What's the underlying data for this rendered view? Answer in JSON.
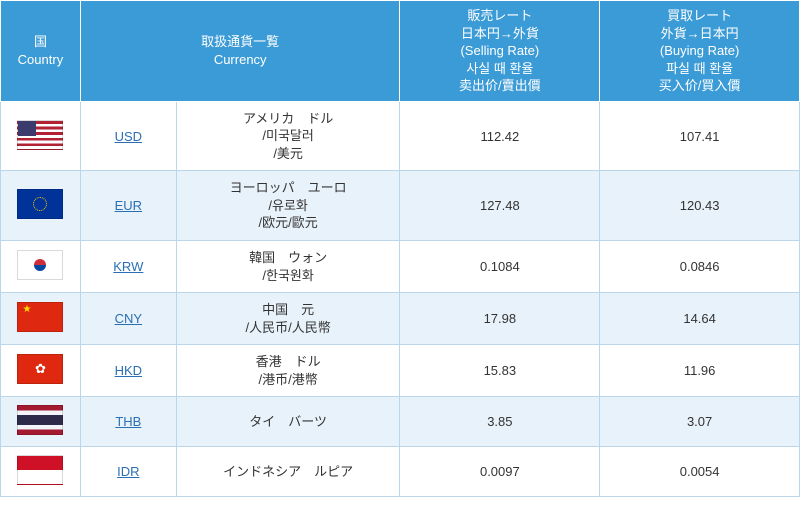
{
  "colors": {
    "header_bg": "#3b9bd6",
    "header_text": "#ffffff",
    "row_even_bg": "#ffffff",
    "row_odd_bg": "#e8f2fa",
    "border": "#b9d6eb",
    "body_text": "#333333",
    "link": "#2a6fb5"
  },
  "typography": {
    "header_fontsize": 13,
    "body_fontsize": 13,
    "link_fontsize": 13
  },
  "columns": {
    "widths_pct": [
      10,
      12,
      28,
      25,
      25
    ],
    "country": [
      "国",
      "Country"
    ],
    "currency": [
      "取扱通貨一覧",
      "Currency"
    ],
    "selling": [
      "販売レート",
      "日本円→外貨",
      "(Selling Rate)",
      "사실 때 환율",
      "卖出价/賣出價"
    ],
    "buying": [
      "買取レート",
      "外貨→日本円",
      "(Buying Rate)",
      "파실 때 환율",
      "买入价/買入價"
    ]
  },
  "rows": [
    {
      "flag": "us",
      "code": "USD",
      "name_lines": [
        "アメリカ　ドル",
        "/미국달러",
        "/美元"
      ],
      "selling": "112.42",
      "buying": "107.41"
    },
    {
      "flag": "eu",
      "code": "EUR",
      "name_lines": [
        "ヨーロッパ　ユーロ",
        "/유로화",
        "/欧元/歐元"
      ],
      "selling": "127.48",
      "buying": "120.43"
    },
    {
      "flag": "kr",
      "code": "KRW",
      "name_lines": [
        "韓国　ウォン",
        "/한국원화"
      ],
      "selling": "0.1084",
      "buying": "0.0846"
    },
    {
      "flag": "cn",
      "code": "CNY",
      "name_lines": [
        "中国　元",
        "/人民币/人民幣"
      ],
      "selling": "17.98",
      "buying": "14.64"
    },
    {
      "flag": "hk",
      "code": "HKD",
      "name_lines": [
        "香港　ドル",
        "/港币/港幣"
      ],
      "selling": "15.83",
      "buying": "11.96"
    },
    {
      "flag": "th",
      "code": "THB",
      "name_lines": [
        "タイ　バーツ"
      ],
      "selling": "3.85",
      "buying": "3.07"
    },
    {
      "flag": "id",
      "code": "IDR",
      "name_lines": [
        "インドネシア　ルピア"
      ],
      "selling": "0.0097",
      "buying": "0.0054"
    }
  ]
}
